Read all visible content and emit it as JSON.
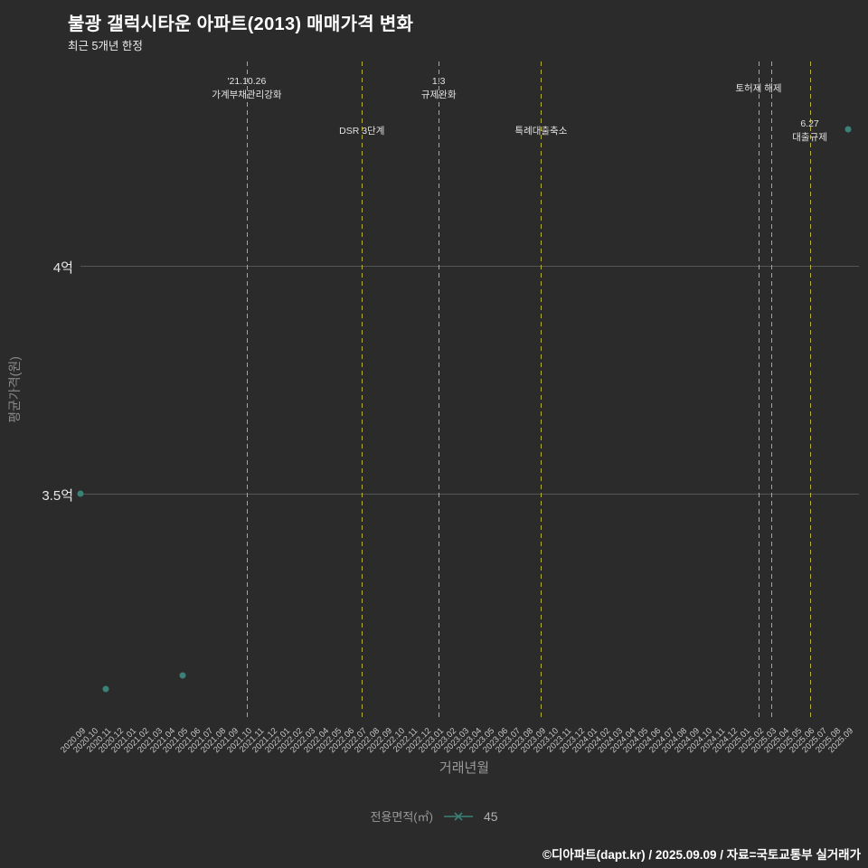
{
  "chart_data": {
    "type": "scatter",
    "title": "불광 갤럭시타운 아파트(2013) 매매가격 변화",
    "subtitle": "최근 5개년 한정",
    "xlabel": "거래년월",
    "ylabel": "평균가격(원)",
    "y_unit": "억원",
    "ylim": [
      3.005,
      4.45
    ],
    "grid": "horizontal-only",
    "y_ticks": [
      {
        "label": "4억",
        "value": 4.0
      },
      {
        "label": "3.5억",
        "value": 3.5
      }
    ],
    "x_ticks": [
      "2020.09",
      "2020.10",
      "2020.11",
      "2020.12",
      "2021.01",
      "2021.02",
      "2021.03",
      "2021.04",
      "2021.05",
      "2021.06",
      "2021.07",
      "2021.08",
      "2021.09",
      "2021.10",
      "2021.11",
      "2021.12",
      "2022.01",
      "2022.02",
      "2022.03",
      "2022.04",
      "2022.05",
      "2022.06",
      "2022.07",
      "2022.08",
      "2022.09",
      "2022.10",
      "2022.11",
      "2022.12",
      "2023.01",
      "2023.02",
      "2023.03",
      "2023.04",
      "2023.05",
      "2023.06",
      "2023.07",
      "2023.08",
      "2023.09",
      "2023.10",
      "2023.11",
      "2023.12",
      "2024.01",
      "2024.02",
      "2024.03",
      "2024.04",
      "2024.05",
      "2024.06",
      "2024.07",
      "2024.08",
      "2024.09",
      "2024.10",
      "2024.11",
      "2024.12",
      "2025.01",
      "2025.02",
      "2025.03",
      "2025.04",
      "2025.05",
      "2025.06",
      "2025.07",
      "2025.08",
      "2025.09"
    ],
    "points": [
      {
        "x": "2020.09",
        "y_eok": 3.5
      },
      {
        "x": "2020.11",
        "y_eok": 3.07
      },
      {
        "x": "2021.05",
        "y_eok": 3.1
      },
      {
        "x": "2025.09",
        "y_eok": 4.3
      }
    ],
    "event_lines": [
      "2021.10",
      "2022.07",
      "2023.01",
      "2023.09",
      "2025.02",
      "2025.03",
      "2025.06"
    ],
    "event_labels": [
      {
        "anchor": "2021.10",
        "row": 0,
        "lines": [
          "'21.10.26",
          "가계부채관리강화"
        ]
      },
      {
        "anchor": "2022.07",
        "row": 1,
        "lines": [
          "DSR 3단계"
        ]
      },
      {
        "anchor": "2023.01",
        "row": 0,
        "lines": [
          "1.3",
          "규제완화"
        ]
      },
      {
        "anchor": "2023.09",
        "row": 1,
        "lines": [
          "특례대출축소"
        ]
      },
      {
        "anchor": "2025.02",
        "row": 0,
        "lines": [
          "토허제 해제"
        ]
      },
      {
        "anchor": "2025.06",
        "row": 1,
        "lines": [
          "6.27",
          "대출규제"
        ]
      }
    ],
    "legend": {
      "label": "전용면적(㎡)",
      "series_value": "45",
      "position": "bottom-center"
    },
    "colors": {
      "background": "#2b2b2b",
      "point": "#3a8177",
      "event_line": "#b6b432",
      "grid": "#5a5a5a"
    }
  },
  "footer": {
    "credit": "©디아파트(dapt.kr) / 2025.09.09 / 자료=국토교통부 실거래가"
  }
}
